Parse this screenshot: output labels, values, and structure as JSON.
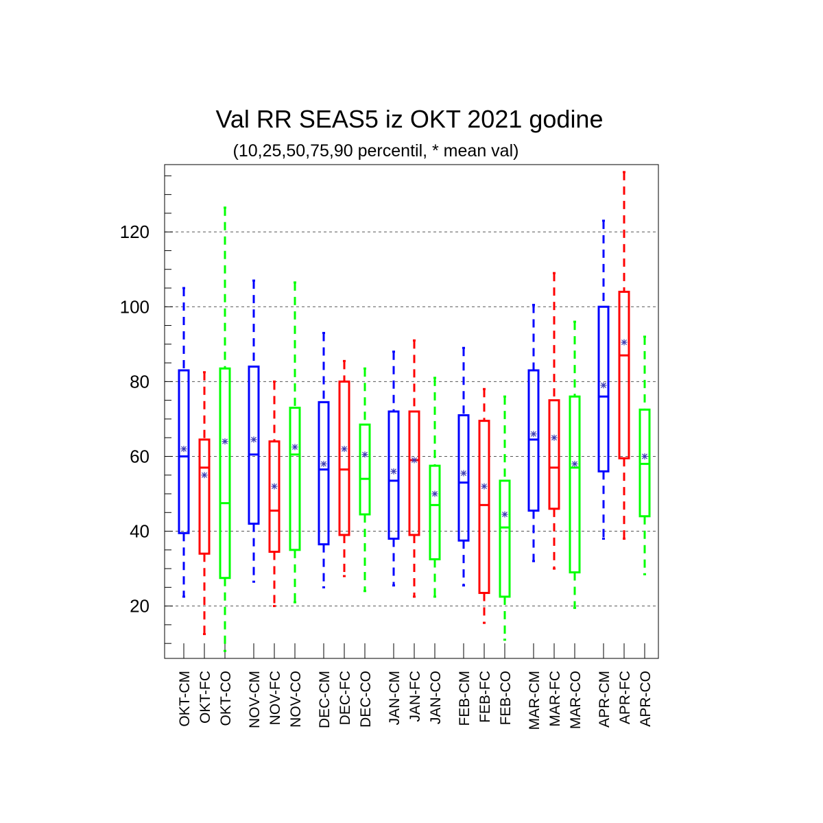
{
  "chart_data": {
    "type": "boxplot",
    "title": "Val RR SEAS5 iz OKT 2021 godine",
    "subtitle": "(10,25,50,75,90 percentil, * mean val)",
    "xlabel": "",
    "ylabel": "",
    "ylim": [
      6,
      138
    ],
    "yticks": [
      "20",
      "40",
      "60",
      "80",
      "100",
      "120"
    ],
    "grid": "horizontal dashed at major ticks",
    "legend": "none",
    "colors": {
      "CM": "#0000ff",
      "FC": "#ff0000",
      "CO": "#00ff00",
      "mean_marker": "#3b3bb0",
      "grid": "#555555"
    },
    "categories": [
      "OKT-CM",
      "OKT-FC",
      "OKT-CO",
      "NOV-CM",
      "NOV-FC",
      "NOV-CO",
      "DEC-CM",
      "DEC-FC",
      "DEC-CO",
      "JAN-CM",
      "JAN-FC",
      "JAN-CO",
      "FEB-CM",
      "FEB-FC",
      "FEB-CO",
      "MAR-CM",
      "MAR-FC",
      "MAR-CO",
      "APR-CM",
      "APR-FC",
      "APR-CO"
    ],
    "boxes": [
      {
        "p10": 22.5,
        "p25": 39.5,
        "p50": 60,
        "p75": 83,
        "p90": 105,
        "mean": 62,
        "color": "CM"
      },
      {
        "p10": 12.5,
        "p25": 34,
        "p50": 57,
        "p75": 64.5,
        "p90": 82.5,
        "mean": 55,
        "color": "FC"
      },
      {
        "p10": 8,
        "p25": 27.5,
        "p50": 47.5,
        "p75": 83.5,
        "p90": 126.5,
        "mean": 64,
        "color": "CO"
      },
      {
        "p10": 26.5,
        "p25": 42,
        "p50": 60.5,
        "p75": 84,
        "p90": 107,
        "mean": 64.5,
        "color": "CM"
      },
      {
        "p10": 20,
        "p25": 34.5,
        "p50": 45.5,
        "p75": 64,
        "p90": 80,
        "mean": 52,
        "color": "FC"
      },
      {
        "p10": 21,
        "p25": 35,
        "p50": 60.5,
        "p75": 73,
        "p90": 106.5,
        "mean": 62.5,
        "color": "CO"
      },
      {
        "p10": 25,
        "p25": 36.5,
        "p50": 56.5,
        "p75": 74.5,
        "p90": 93,
        "mean": 58,
        "color": "CM"
      },
      {
        "p10": 28,
        "p25": 39,
        "p50": 56.5,
        "p75": 80,
        "p90": 85.5,
        "mean": 62,
        "color": "FC"
      },
      {
        "p10": 24,
        "p25": 44.5,
        "p50": 54,
        "p75": 68.5,
        "p90": 83.5,
        "mean": 60.5,
        "color": "CO"
      },
      {
        "p10": 25.5,
        "p25": 38,
        "p50": 53.5,
        "p75": 72,
        "p90": 88,
        "mean": 56,
        "color": "CM"
      },
      {
        "p10": 22.5,
        "p25": 39,
        "p50": 59,
        "p75": 72,
        "p90": 91,
        "mean": 59,
        "color": "FC"
      },
      {
        "p10": 22.5,
        "p25": 32.5,
        "p50": 47,
        "p75": 57.5,
        "p90": 81,
        "mean": 50,
        "color": "CO"
      },
      {
        "p10": 25.5,
        "p25": 37.5,
        "p50": 53,
        "p75": 71,
        "p90": 89,
        "mean": 55.5,
        "color": "CM"
      },
      {
        "p10": 15.5,
        "p25": 23.5,
        "p50": 47,
        "p75": 69.5,
        "p90": 78,
        "mean": 52,
        "color": "FC"
      },
      {
        "p10": 11,
        "p25": 22.5,
        "p50": 41,
        "p75": 53.5,
        "p90": 76,
        "mean": 44.5,
        "color": "CO"
      },
      {
        "p10": 32,
        "p25": 45.5,
        "p50": 64.5,
        "p75": 83,
        "p90": 100.5,
        "mean": 66,
        "color": "CM"
      },
      {
        "p10": 30,
        "p25": 46,
        "p50": 57,
        "p75": 75,
        "p90": 109,
        "mean": 65,
        "color": "FC"
      },
      {
        "p10": 19.5,
        "p25": 29,
        "p50": 57,
        "p75": 76,
        "p90": 96,
        "mean": 58,
        "color": "CO"
      },
      {
        "p10": 38,
        "p25": 56,
        "p50": 76,
        "p75": 100,
        "p90": 123,
        "mean": 79,
        "color": "CM"
      },
      {
        "p10": 38,
        "p25": 59.5,
        "p50": 87,
        "p75": 104,
        "p90": 136,
        "mean": 90.5,
        "color": "FC"
      },
      {
        "p10": 28.5,
        "p25": 44,
        "p50": 58,
        "p75": 72.5,
        "p90": 92,
        "mean": 60,
        "color": "CO"
      }
    ]
  }
}
